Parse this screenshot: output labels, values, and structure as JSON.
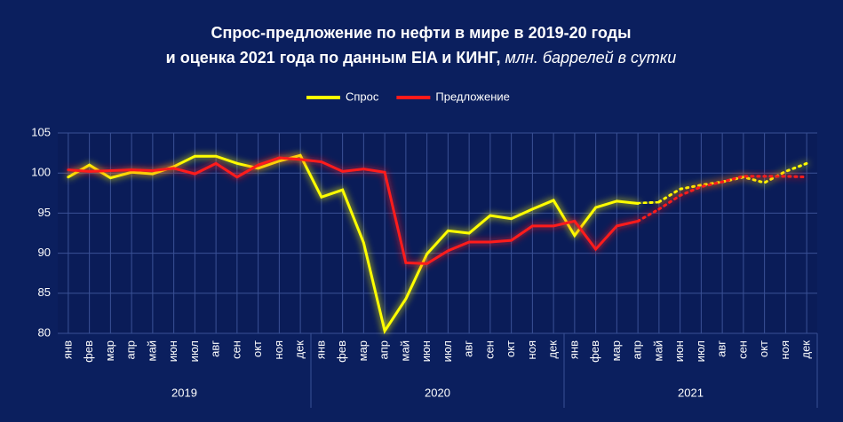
{
  "chart_data": {
    "type": "line",
    "title": "Спрос-предложение по нефти в мире в 2019-20 годы",
    "title_line2": "и оценка 2021 года по данным EIA и КИНГ,",
    "title_line2_italic": "млн. баррелей в сутки",
    "categories": [
      "янв",
      "фев",
      "мар",
      "апр",
      "май",
      "июн",
      "июл",
      "авг",
      "сен",
      "окт",
      "ноя",
      "дек",
      "янв",
      "фев",
      "мар",
      "апр",
      "май",
      "июн",
      "июл",
      "авг",
      "сен",
      "окт",
      "ноя",
      "дек",
      "янв",
      "фев",
      "мар",
      "апр",
      "май",
      "июн",
      "июл",
      "авг",
      "сен",
      "окт",
      "ноя",
      "дек"
    ],
    "year_groups": [
      "2019",
      "2020",
      "2021"
    ],
    "ylim": [
      80,
      105
    ],
    "yticks": [
      80,
      85,
      90,
      95,
      100,
      105
    ],
    "grid": true,
    "legend": "top",
    "series": [
      {
        "name": "Спрос",
        "color": "#ffff00",
        "values": [
          99.5,
          101.0,
          99.4,
          100.1,
          99.9,
          100.8,
          102.1,
          102.1,
          101.2,
          100.6,
          101.5,
          102.2,
          97.0,
          97.9,
          91.3,
          80.3,
          84.3,
          89.9,
          92.8,
          92.5,
          94.7,
          94.3,
          95.5,
          96.6,
          92.2,
          95.7,
          96.5,
          96.2,
          null,
          null,
          null,
          null,
          null,
          null,
          null,
          null
        ]
      },
      {
        "name": "Предложение",
        "color": "#ff1a1a",
        "values": [
          100.4,
          100.2,
          100.3,
          100.4,
          100.3,
          100.6,
          99.9,
          101.2,
          99.5,
          101.0,
          101.9,
          101.7,
          101.4,
          100.2,
          100.5,
          100.1,
          88.8,
          88.7,
          90.3,
          91.4,
          91.4,
          91.6,
          93.4,
          93.4,
          94.0,
          90.5,
          93.4,
          94.0,
          null,
          null,
          null,
          null,
          null,
          null,
          null,
          null
        ]
      }
    ],
    "forecast": [
      {
        "color": "#ffff00",
        "values": [
          null,
          null,
          null,
          null,
          null,
          null,
          null,
          null,
          null,
          null,
          null,
          null,
          null,
          null,
          null,
          null,
          null,
          null,
          null,
          null,
          null,
          null,
          null,
          null,
          null,
          null,
          null,
          null,
          96.4,
          98.0,
          98.5,
          98.9,
          99.5,
          98.8,
          100.2,
          101.2
        ]
      },
      {
        "color": "#ff1a1a",
        "values": [
          null,
          null,
          null,
          null,
          null,
          null,
          null,
          null,
          null,
          null,
          null,
          null,
          null,
          null,
          null,
          null,
          null,
          null,
          null,
          null,
          null,
          null,
          null,
          null,
          null,
          null,
          null,
          null,
          95.5,
          97.2,
          98.3,
          98.9,
          99.6,
          99.6,
          99.6,
          99.5
        ]
      }
    ]
  }
}
